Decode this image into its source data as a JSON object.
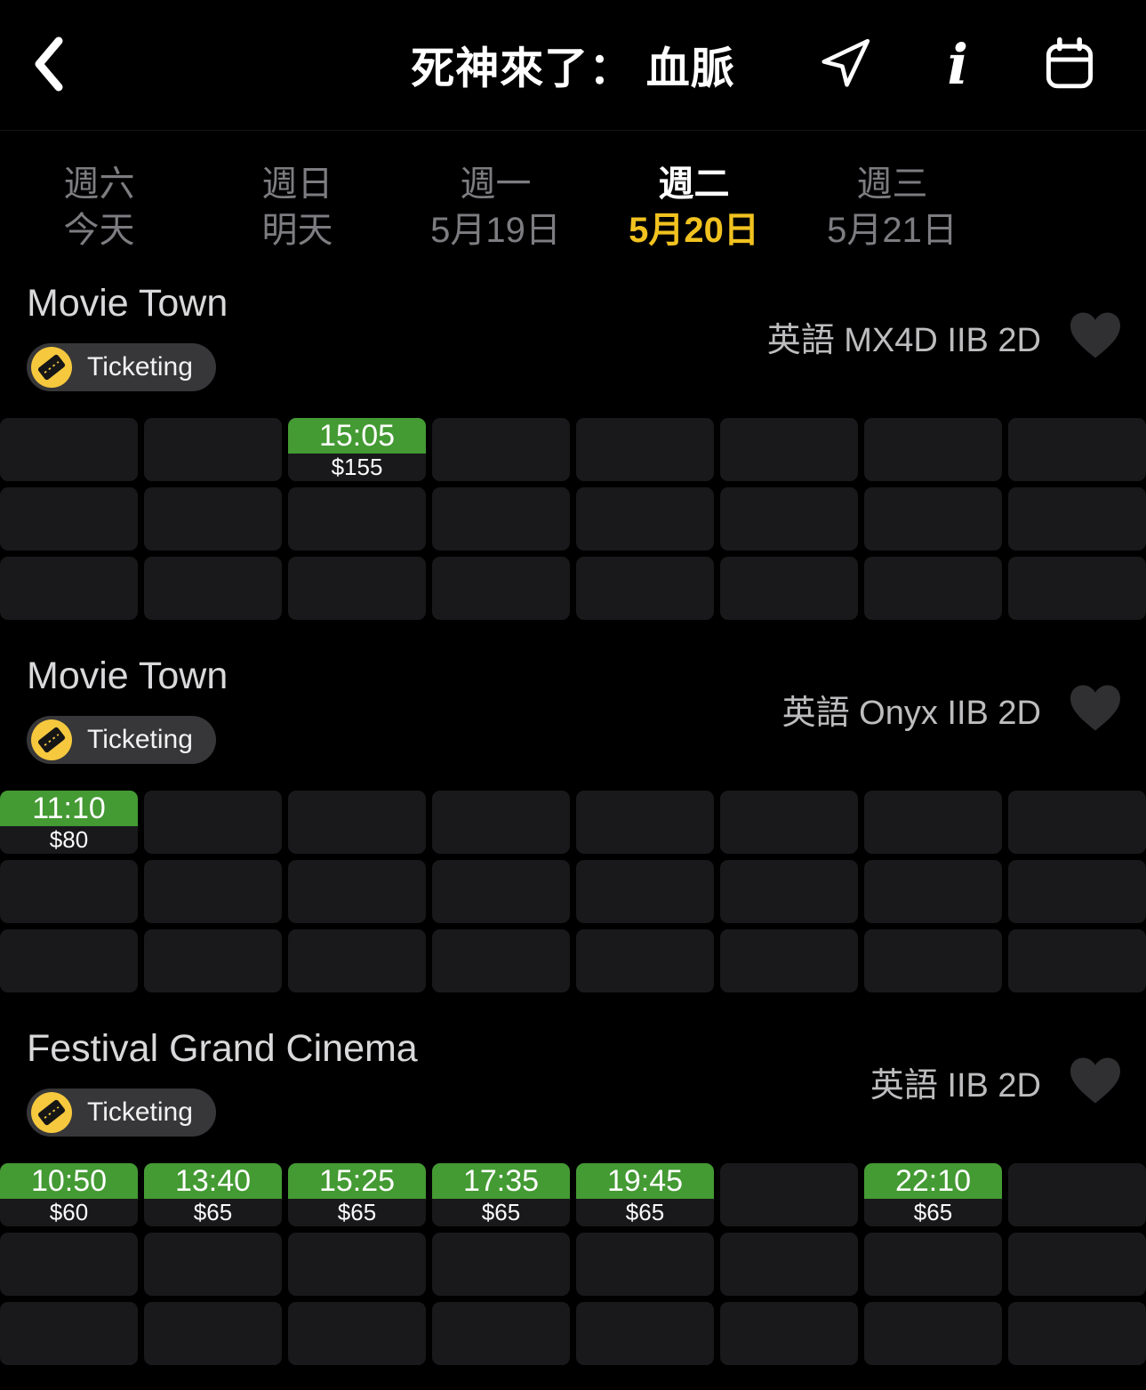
{
  "header": {
    "title": "死神來了： 血脈",
    "icons": [
      "back-chevron-icon",
      "navigation-arrow-icon",
      "info-italic-i-icon",
      "calendar-icon"
    ]
  },
  "date_tabs": [
    {
      "weekday": "週六",
      "date": "今天",
      "selected": false
    },
    {
      "weekday": "週日",
      "date": "明天",
      "selected": false
    },
    {
      "weekday": "週一",
      "date": "5月19日",
      "selected": false
    },
    {
      "weekday": "週二",
      "date": "5月20日",
      "selected": true
    },
    {
      "weekday": "週三",
      "date": "5月21日",
      "selected": false
    }
  ],
  "sections": [
    {
      "cinema": "Movie Town",
      "badge_label": "Ticketing",
      "meta": "英語 MX4D IIB 2D",
      "grid": {
        "rows": 3,
        "cols": 8
      },
      "showtimes": [
        {
          "row": 1,
          "col": 3,
          "time": "15:05",
          "price": "$155"
        }
      ]
    },
    {
      "cinema": "Movie Town",
      "badge_label": "Ticketing",
      "meta": "英語 Onyx IIB 2D",
      "grid": {
        "rows": 3,
        "cols": 8
      },
      "showtimes": [
        {
          "row": 1,
          "col": 1,
          "time": "11:10",
          "price": "$80"
        }
      ]
    },
    {
      "cinema": "Festival Grand Cinema",
      "badge_label": "Ticketing",
      "meta": "英語 IIB 2D",
      "grid": {
        "rows": 3,
        "cols": 8
      },
      "showtimes": [
        {
          "row": 1,
          "col": 1,
          "time": "10:50",
          "price": "$60"
        },
        {
          "row": 1,
          "col": 2,
          "time": "13:40",
          "price": "$65"
        },
        {
          "row": 1,
          "col": 3,
          "time": "15:25",
          "price": "$65"
        },
        {
          "row": 1,
          "col": 4,
          "time": "17:35",
          "price": "$65"
        },
        {
          "row": 1,
          "col": 5,
          "time": "19:45",
          "price": "$65"
        },
        {
          "row": 1,
          "col": 7,
          "time": "22:10",
          "price": "$65"
        }
      ]
    }
  ],
  "colors": {
    "background": "#000000",
    "accent_yellow": "#F1C21F",
    "badge_circle_yellow": "#F6C83E",
    "showtime_green": "#449A33",
    "cell_background": "#19191B",
    "badge_background": "#373739",
    "inactive_text": "#7D7D81",
    "title_text": "#D9D9DB",
    "meta_text": "#BDBDBF",
    "heart_fill": "#303032"
  }
}
